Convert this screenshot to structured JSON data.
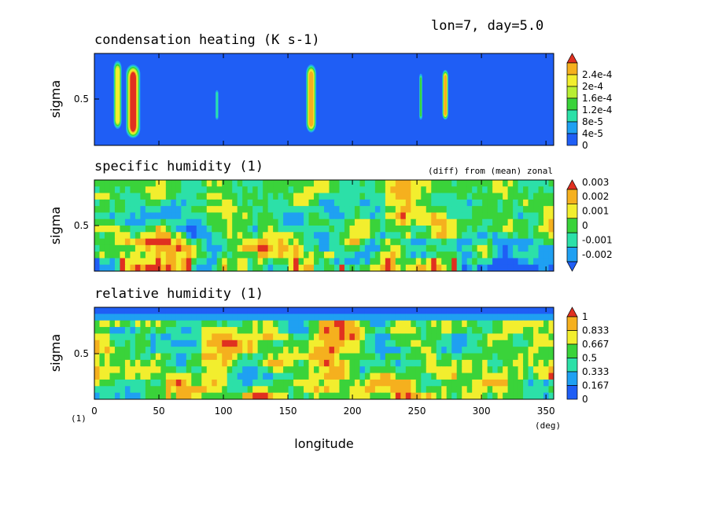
{
  "header": {
    "info": "lon=7, day=5.0"
  },
  "x_axis": {
    "label": "longitude",
    "unit": "(deg)",
    "lower_left_unit": "(1)",
    "range": [
      0,
      356
    ],
    "ticks": [
      0,
      50,
      100,
      150,
      200,
      250,
      300,
      350
    ],
    "tick_labels": [
      "0",
      "50",
      "100",
      "150",
      "200",
      "250",
      "300",
      "350"
    ]
  },
  "chart_data": [
    {
      "type": "heatmap",
      "title": "condensation heating (K s-1)",
      "note": "",
      "ylabel": "sigma",
      "ytick_label": "0.5",
      "xlim": [
        0,
        356
      ],
      "levels": [
        "0",
        "4e-5",
        "8e-5",
        "1.2e-4",
        "1.6e-4",
        "2e-4",
        "2.4e-4"
      ],
      "colors": [
        "#1f5ef5",
        "#1fa0f2",
        "#2ce0a8",
        "#3ad33a",
        "#b8ee33",
        "#f2ee2e",
        "#f5b01e",
        "#e03020"
      ],
      "background_level": 0,
      "features": [
        {
          "lon": 18,
          "width": 4,
          "top": 0.08,
          "bottom": 0.82,
          "level": 5
        },
        {
          "lon": 30,
          "width": 7,
          "top": 0.12,
          "bottom": 0.92,
          "level": 7
        },
        {
          "lon": 95,
          "width": 1.5,
          "top": 0.4,
          "bottom": 0.72,
          "level": 2
        },
        {
          "lon": 168,
          "width": 5,
          "top": 0.12,
          "bottom": 0.86,
          "level": 6
        },
        {
          "lon": 253,
          "width": 1.5,
          "top": 0.22,
          "bottom": 0.72,
          "level": 3
        },
        {
          "lon": 272,
          "width": 3,
          "top": 0.18,
          "bottom": 0.72,
          "level": 6
        }
      ]
    },
    {
      "type": "heatmap",
      "title": "specific humidity (1)",
      "note": "(diff) from (mean) zonal",
      "ylabel": "sigma",
      "ytick_label": "0.5",
      "xlim": [
        0,
        356
      ],
      "levels": [
        "-0.002",
        "-0.001",
        "0",
        "0.001",
        "0.002",
        "0.003"
      ],
      "colors": [
        "#1f5ef5",
        "#1fa0f2",
        "#2ce0a8",
        "#3ad33a",
        "#f2ee2e",
        "#f5b01e",
        "#e03020"
      ],
      "background_level": 3,
      "features": []
    },
    {
      "type": "heatmap",
      "title": "relative humidity (1)",
      "note": "",
      "ylabel": "sigma",
      "ytick_label": "0.5",
      "xlim": [
        0,
        356
      ],
      "levels": [
        "0",
        "0.167",
        "0.333",
        "0.5",
        "0.667",
        "0.833",
        "1"
      ],
      "colors": [
        "#1f5ef5",
        "#1fa0f2",
        "#2ce0a8",
        "#3ad33a",
        "#f2ee2e",
        "#f5b01e",
        "#e03020"
      ],
      "background_level": 5,
      "features": []
    }
  ]
}
